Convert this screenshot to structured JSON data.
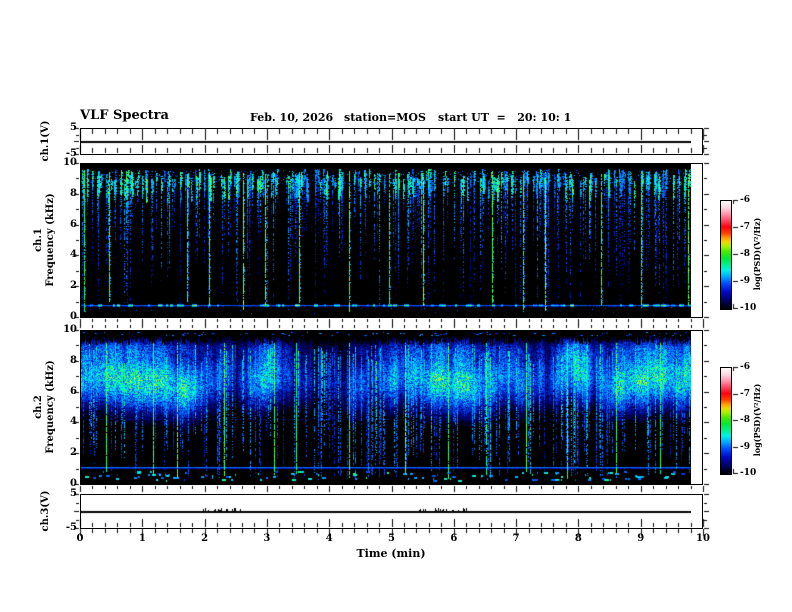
{
  "header": {
    "title": "VLF Spectra",
    "date": "Feb. 10, 2026",
    "station": "station=MOS",
    "start_ut": "start UT  =   20: 10: 1"
  },
  "xaxis": {
    "label": "Time (min)",
    "ticks": [
      "0",
      "1",
      "2",
      "3",
      "4",
      "5",
      "6",
      "7",
      "8",
      "9",
      "10"
    ],
    "min": 0,
    "max": 10,
    "minor_per_major": 5
  },
  "yaxis": {
    "voltage_ticks": [
      "5",
      "-5"
    ],
    "freq_ticks": [
      "10",
      "8",
      "6",
      "4",
      "2",
      "0"
    ]
  },
  "panels": {
    "ch1_voltage": {
      "label": "ch.1(V)"
    },
    "ch1_spectrogram": {
      "channel": "ch.1",
      "axis": "Frequency (kHz)"
    },
    "ch2_spectrogram": {
      "channel": "ch.2",
      "axis": "Frequency (kHz)"
    },
    "ch3_voltage": {
      "label": "ch.3(V)"
    }
  },
  "colorbar": {
    "label": "log(PSD)(V²/Hz)",
    "ticks": [
      "-6",
      "-7",
      "-8",
      "-9",
      "-10"
    ],
    "gradient": [
      [
        0.0,
        "#000000"
      ],
      [
        0.07,
        "#000055"
      ],
      [
        0.16,
        "#0008c8"
      ],
      [
        0.24,
        "#0050ff"
      ],
      [
        0.3,
        "#00a8ff"
      ],
      [
        0.36,
        "#00f0e8"
      ],
      [
        0.41,
        "#00f090"
      ],
      [
        0.47,
        "#00e838"
      ],
      [
        0.53,
        "#48e800"
      ],
      [
        0.58,
        "#a8f000"
      ],
      [
        0.62,
        "#f0d800"
      ],
      [
        0.66,
        "#ff9800"
      ],
      [
        0.7,
        "#ff4000"
      ],
      [
        0.76,
        "#ff0010"
      ],
      [
        0.82,
        "#ff4868"
      ],
      [
        0.88,
        "#ff98b0"
      ],
      [
        0.94,
        "#ffd8e4"
      ],
      [
        1.0,
        "#fffafa"
      ]
    ]
  },
  "colors": {
    "background": "#ffffff",
    "foreground": "#000000",
    "spectrogram_background": "#000000",
    "spectrogram_colormap": [
      [
        0.0,
        "#000000"
      ],
      [
        0.12,
        "#000068"
      ],
      [
        0.25,
        "#0030e0"
      ],
      [
        0.38,
        "#0080ff"
      ],
      [
        0.5,
        "#00c8ff"
      ],
      [
        0.62,
        "#00ffd0"
      ],
      [
        0.72,
        "#20ff70"
      ],
      [
        0.82,
        "#80ff30"
      ],
      [
        0.9,
        "#d8ff40"
      ],
      [
        1.0,
        "#ffffff"
      ]
    ]
  },
  "chart_data": [
    {
      "type": "line",
      "name": "ch1-voltage",
      "ylabel": "ch.1(V)",
      "ylim": [
        -5,
        5
      ],
      "xlim_min": [
        0,
        10
      ],
      "data_extent_min": [
        0,
        9.8
      ],
      "value": 0,
      "spike_clusters_min": []
    },
    {
      "type": "heatmap",
      "name": "ch1-spectrogram",
      "ylabel": "ch.1 Frequency (kHz)",
      "ylim_khz": [
        0,
        10
      ],
      "xlim_min": [
        0,
        10
      ],
      "data_extent_min": [
        0,
        9.8
      ],
      "zlim_log_psd": [
        -10,
        -6
      ],
      "background_log_psd": -10,
      "seed": 1337,
      "render": {
        "streak_count": 300,
        "streak_top_khz": [
          8.9,
          9.7
        ],
        "top_speckle_khz": [
          8.7,
          9.6
        ],
        "strong_streak_times_min": [
          0.05,
          0.45,
          1.7,
          2.05,
          2.6,
          2.95,
          3.5,
          4.3,
          4.95,
          5.5,
          6.6,
          7.1,
          7.45,
          8.35,
          9.0,
          9.75
        ],
        "baseline_khz": 0.72,
        "baseline_blob_count": 70
      }
    },
    {
      "type": "heatmap",
      "name": "ch2-spectrogram",
      "ylabel": "ch.2 Frequency (kHz)",
      "ylim_khz": [
        0,
        10
      ],
      "xlim_min": [
        0,
        10
      ],
      "data_extent_min": [
        0,
        9.8
      ],
      "zlim_log_psd": [
        -10,
        -6
      ],
      "background_log_psd": -10,
      "seed": 424242,
      "render": {
        "band_khz": [
          4.0,
          9.6
        ],
        "band_peak_khz": 7.0,
        "streak_count": 220,
        "strong_streak_times_min": [
          0.4,
          1.15,
          1.55,
          2.3,
          3.1,
          3.45,
          4.3,
          5.2,
          5.9,
          6.5,
          7.15,
          7.8,
          8.6,
          9.3
        ],
        "baseline_khz": 1.05,
        "faint_line_khz": 4.2,
        "bottom_dash_band_khz": [
          0.2,
          0.8
        ],
        "top_dash_band_khz": [
          9.7,
          9.95
        ]
      }
    },
    {
      "type": "line",
      "name": "ch3-voltage",
      "ylabel": "ch.3(V)",
      "ylim": [
        -5,
        5
      ],
      "xlim_min": [
        0,
        10
      ],
      "data_extent_min": [
        0,
        9.8
      ],
      "value": 0,
      "spike_clusters_min": [
        [
          1.95,
          2.75
        ],
        [
          5.25,
          6.25
        ]
      ]
    }
  ]
}
